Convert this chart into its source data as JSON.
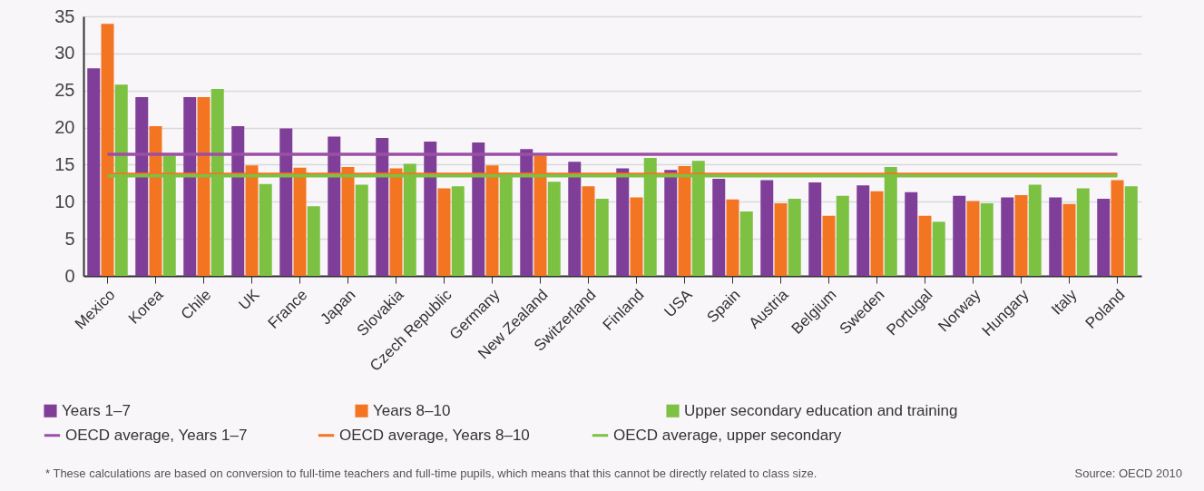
{
  "chart_data": {
    "type": "bar",
    "categories": [
      "Mexico",
      "Korea",
      "Chile",
      "UK",
      "France",
      "Japan",
      "Slovakia",
      "Czech Republic",
      "Germany",
      "New Zealand",
      "Switzerland",
      "Finland",
      "USA",
      "Spain",
      "Austria",
      "Belgium",
      "Sweden",
      "Portugal",
      "Norway",
      "Hungary",
      "Italy",
      "Poland"
    ],
    "series": [
      {
        "name": "Years 1–7",
        "color": "#7f3f98",
        "values": [
          28,
          24.1,
          24.1,
          20.2,
          19.9,
          18.8,
          18.6,
          18.1,
          18,
          17.1,
          15.4,
          14.5,
          14.3,
          13.1,
          12.9,
          12.6,
          12.2,
          11.3,
          10.8,
          10.6,
          10.6,
          10.4
        ]
      },
      {
        "name": "Years 8–10",
        "color": "#f47521",
        "values": [
          34,
          20.2,
          24.1,
          14.9,
          14.6,
          14.7,
          14.5,
          11.8,
          14.9,
          16.2,
          12.1,
          10.6,
          14.8,
          10.3,
          9.8,
          8.1,
          11.4,
          8.1,
          10.1,
          10.9,
          9.7,
          12.9
        ]
      },
      {
        "name": "Upper secondary education and training",
        "color": "#7cc142",
        "values": [
          25.8,
          16.2,
          25.2,
          12.4,
          9.4,
          12.3,
          15.1,
          12.1,
          13.9,
          12.7,
          10.4,
          15.9,
          15.5,
          8.7,
          10.4,
          10.8,
          14.7,
          7.3,
          9.8,
          12.3,
          11.8,
          12.1
        ]
      },
      {
        "name": "OECD average, Years 1–7",
        "color": "#9b4fa5",
        "type": "line",
        "values": [
          16.4,
          16.4,
          16.4,
          16.4,
          16.4,
          16.4,
          16.4,
          16.4,
          16.4,
          16.4,
          16.4,
          16.4,
          16.4,
          16.4,
          16.4,
          16.4,
          16.4,
          16.4,
          16.4,
          16.4,
          16.4,
          16.4
        ]
      },
      {
        "name": "OECD average, Years 8–10",
        "color": "#f47521",
        "type": "line",
        "values": [
          13.7,
          13.7,
          13.7,
          13.7,
          13.7,
          13.7,
          13.7,
          13.7,
          13.7,
          13.7,
          13.7,
          13.7,
          13.7,
          13.7,
          13.7,
          13.7,
          13.7,
          13.7,
          13.7,
          13.7,
          13.7,
          13.7
        ]
      },
      {
        "name": "OECD average, upper secondary",
        "color": "#7cc142",
        "type": "line",
        "values": [
          13.5,
          13.5,
          13.5,
          13.5,
          13.5,
          13.5,
          13.5,
          13.5,
          13.5,
          13.5,
          13.5,
          13.5,
          13.5,
          13.5,
          13.5,
          13.5,
          13.5,
          13.5,
          13.5,
          13.5,
          13.5,
          13.5
        ]
      }
    ],
    "ylim": [
      0,
      35
    ],
    "yticks": [
      0,
      5,
      10,
      15,
      20,
      25,
      30,
      35
    ],
    "grid": "y",
    "legend": "bottom",
    "annotations": [
      "* These calculations are based on conversion to full-time teachers and full-time pupils, which means that this cannot be directly related to class size.",
      "Source: OECD 2010"
    ]
  }
}
